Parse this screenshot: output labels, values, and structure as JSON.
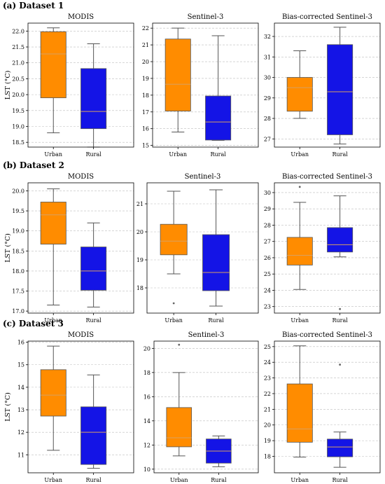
{
  "chart_data": [
    {
      "type": "box",
      "dataset": "(a) Dataset 1",
      "title": "MODIS",
      "ylabel": "LST (°C)",
      "categories": [
        "Urban",
        "Rural"
      ],
      "ylim": [
        18.35,
        22.25
      ],
      "yticks": [
        18.5,
        19.0,
        19.5,
        20.0,
        20.5,
        21.0,
        21.5,
        22.0
      ],
      "ytick_labels": [
        "18.5",
        "19.0",
        "19.5",
        "20.0",
        "20.5",
        "21.0",
        "21.5",
        "22.0"
      ],
      "boxes": [
        {
          "category": "Urban",
          "color": "#ff8c00",
          "whisker_low": 18.8,
          "q1": 19.9,
          "median": 21.28,
          "q3": 21.98,
          "whisker_high": 22.1,
          "outliers": []
        },
        {
          "category": "Rural",
          "color": "#1414e6",
          "whisker_low": 18.35,
          "q1": 18.93,
          "median": 19.47,
          "q3": 20.82,
          "whisker_high": 21.6,
          "outliers": []
        }
      ]
    },
    {
      "type": "box",
      "title": "Sentinel-3",
      "ylabel": "",
      "categories": [
        "Urban",
        "Rural"
      ],
      "ylim": [
        14.9,
        22.3
      ],
      "yticks": [
        15,
        16,
        17,
        18,
        19,
        20,
        21,
        22
      ],
      "ytick_labels": [
        "15",
        "16",
        "17",
        "18",
        "19",
        "20",
        "21",
        "22"
      ],
      "boxes": [
        {
          "category": "Urban",
          "color": "#ff8c00",
          "whisker_low": 15.8,
          "q1": 17.05,
          "median": 18.65,
          "q3": 21.35,
          "whisker_high": 22.0,
          "outliers": []
        },
        {
          "category": "Rural",
          "color": "#1414e6",
          "whisker_low": 15.3,
          "q1": 15.32,
          "median": 16.4,
          "q3": 17.95,
          "whisker_high": 21.55,
          "outliers": []
        }
      ]
    },
    {
      "type": "box",
      "title": "Bias-corrected Sentinel-3",
      "ylabel": "",
      "categories": [
        "Urban",
        "Rural"
      ],
      "ylim": [
        26.6,
        32.65
      ],
      "yticks": [
        27,
        28,
        29,
        30,
        31,
        32
      ],
      "ytick_labels": [
        "27",
        "28",
        "29",
        "30",
        "31",
        "32"
      ],
      "boxes": [
        {
          "category": "Urban",
          "color": "#ff8c00",
          "whisker_low": 28.0,
          "q1": 28.35,
          "median": 29.5,
          "q3": 30.0,
          "whisker_high": 31.3,
          "outliers": []
        },
        {
          "category": "Rural",
          "color": "#1414e6",
          "whisker_low": 26.75,
          "q1": 27.2,
          "median": 29.3,
          "q3": 31.6,
          "whisker_high": 32.45,
          "outliers": []
        }
      ]
    },
    {
      "type": "box",
      "dataset": "(b) Dataset 2",
      "title": "MODIS",
      "ylabel": "LST (°C)",
      "categories": [
        "Urban",
        "Rural"
      ],
      "ylim": [
        16.95,
        20.2
      ],
      "yticks": [
        17.0,
        17.5,
        18.0,
        18.5,
        19.0,
        19.5,
        20.0
      ],
      "ytick_labels": [
        "17.0",
        "17.5",
        "18.0",
        "18.5",
        "19.0",
        "19.5",
        "20.0"
      ],
      "boxes": [
        {
          "category": "Urban",
          "color": "#ff8c00",
          "whisker_low": 17.15,
          "q1": 18.67,
          "median": 19.4,
          "q3": 19.72,
          "whisker_high": 20.05,
          "outliers": []
        },
        {
          "category": "Rural",
          "color": "#1414e6",
          "whisker_low": 17.1,
          "q1": 17.52,
          "median": 18.0,
          "q3": 18.6,
          "whisker_high": 19.2,
          "outliers": []
        }
      ]
    },
    {
      "type": "box",
      "title": "Sentinel-3",
      "ylabel": "",
      "categories": [
        "Urban",
        "Rural"
      ],
      "ylim": [
        17.1,
        21.75
      ],
      "yticks": [
        18,
        19,
        20,
        21
      ],
      "ytick_labels": [
        "18",
        "19",
        "20",
        "21"
      ],
      "boxes": [
        {
          "category": "Urban",
          "color": "#ff8c00",
          "whisker_low": 18.5,
          "q1": 19.18,
          "median": 19.67,
          "q3": 20.27,
          "whisker_high": 21.45,
          "outliers": [
            17.45
          ]
        },
        {
          "category": "Rural",
          "color": "#1414e6",
          "whisker_low": 17.35,
          "q1": 17.9,
          "median": 18.55,
          "q3": 19.9,
          "whisker_high": 21.5,
          "outliers": []
        }
      ]
    },
    {
      "type": "box",
      "title": "Bias-corrected Sentinel-3",
      "ylabel": "",
      "categories": [
        "Urban",
        "Rural"
      ],
      "ylim": [
        22.6,
        30.6
      ],
      "yticks": [
        23,
        24,
        25,
        26,
        27,
        28,
        29,
        30
      ],
      "ytick_labels": [
        "23",
        "24",
        "25",
        "26",
        "27",
        "28",
        "29",
        "30"
      ],
      "boxes": [
        {
          "category": "Urban",
          "color": "#ff8c00",
          "whisker_low": 24.05,
          "q1": 25.55,
          "median": 26.15,
          "q3": 27.25,
          "whisker_high": 29.4,
          "outliers": [
            30.35
          ]
        },
        {
          "category": "Rural",
          "color": "#1414e6",
          "whisker_low": 26.05,
          "q1": 26.35,
          "median": 26.8,
          "q3": 27.85,
          "whisker_high": 29.8,
          "outliers": [
            22.85
          ]
        }
      ]
    },
    {
      "type": "box",
      "dataset": "(c) Dataset 3",
      "title": "MODIS",
      "ylabel": "LST (°C)",
      "categories": [
        "Urban",
        "Rural"
      ],
      "ylim": [
        10.2,
        16.05
      ],
      "yticks": [
        11,
        12,
        13,
        14,
        15,
        16
      ],
      "ytick_labels": [
        "11",
        "12",
        "13",
        "14",
        "15",
        "16"
      ],
      "boxes": [
        {
          "category": "Urban",
          "color": "#ff8c00",
          "whisker_low": 11.2,
          "q1": 12.72,
          "median": 13.65,
          "q3": 14.78,
          "whisker_high": 15.83,
          "outliers": []
        },
        {
          "category": "Rural",
          "color": "#1414e6",
          "whisker_low": 10.4,
          "q1": 10.57,
          "median": 12.0,
          "q3": 13.13,
          "whisker_high": 14.55,
          "outliers": []
        }
      ]
    },
    {
      "type": "box",
      "title": "Sentinel-3",
      "ylabel": "",
      "categories": [
        "Urban",
        "Rural"
      ],
      "ylim": [
        9.7,
        20.6
      ],
      "yticks": [
        10,
        12,
        14,
        16,
        18,
        20
      ],
      "ytick_labels": [
        "10",
        "12",
        "14",
        "16",
        "18",
        "20"
      ],
      "boxes": [
        {
          "category": "Urban",
          "color": "#ff8c00",
          "whisker_low": 11.1,
          "q1": 11.85,
          "median": 12.6,
          "q3": 15.1,
          "whisker_high": 18.0,
          "outliers": [
            20.3
          ]
        },
        {
          "category": "Rural",
          "color": "#1414e6",
          "whisker_low": 10.2,
          "q1": 10.5,
          "median": 11.5,
          "q3": 12.5,
          "whisker_high": 12.75,
          "outliers": []
        }
      ]
    },
    {
      "type": "box",
      "title": "Bias-corrected Sentinel-3",
      "ylabel": "",
      "categories": [
        "Urban",
        "Rural"
      ],
      "ylim": [
        16.95,
        25.35
      ],
      "yticks": [
        18,
        19,
        20,
        21,
        22,
        23,
        24,
        25
      ],
      "ytick_labels": [
        "18",
        "19",
        "20",
        "21",
        "22",
        "23",
        "24",
        "25"
      ],
      "boxes": [
        {
          "category": "Urban",
          "color": "#ff8c00",
          "whisker_low": 17.95,
          "q1": 18.9,
          "median": 19.75,
          "q3": 22.62,
          "whisker_high": 25.05,
          "outliers": []
        },
        {
          "category": "Rural",
          "color": "#1414e6",
          "whisker_low": 17.3,
          "q1": 17.97,
          "median": 18.6,
          "q3": 19.1,
          "whisker_high": 19.55,
          "outliers": [
            23.85
          ]
        }
      ]
    }
  ]
}
